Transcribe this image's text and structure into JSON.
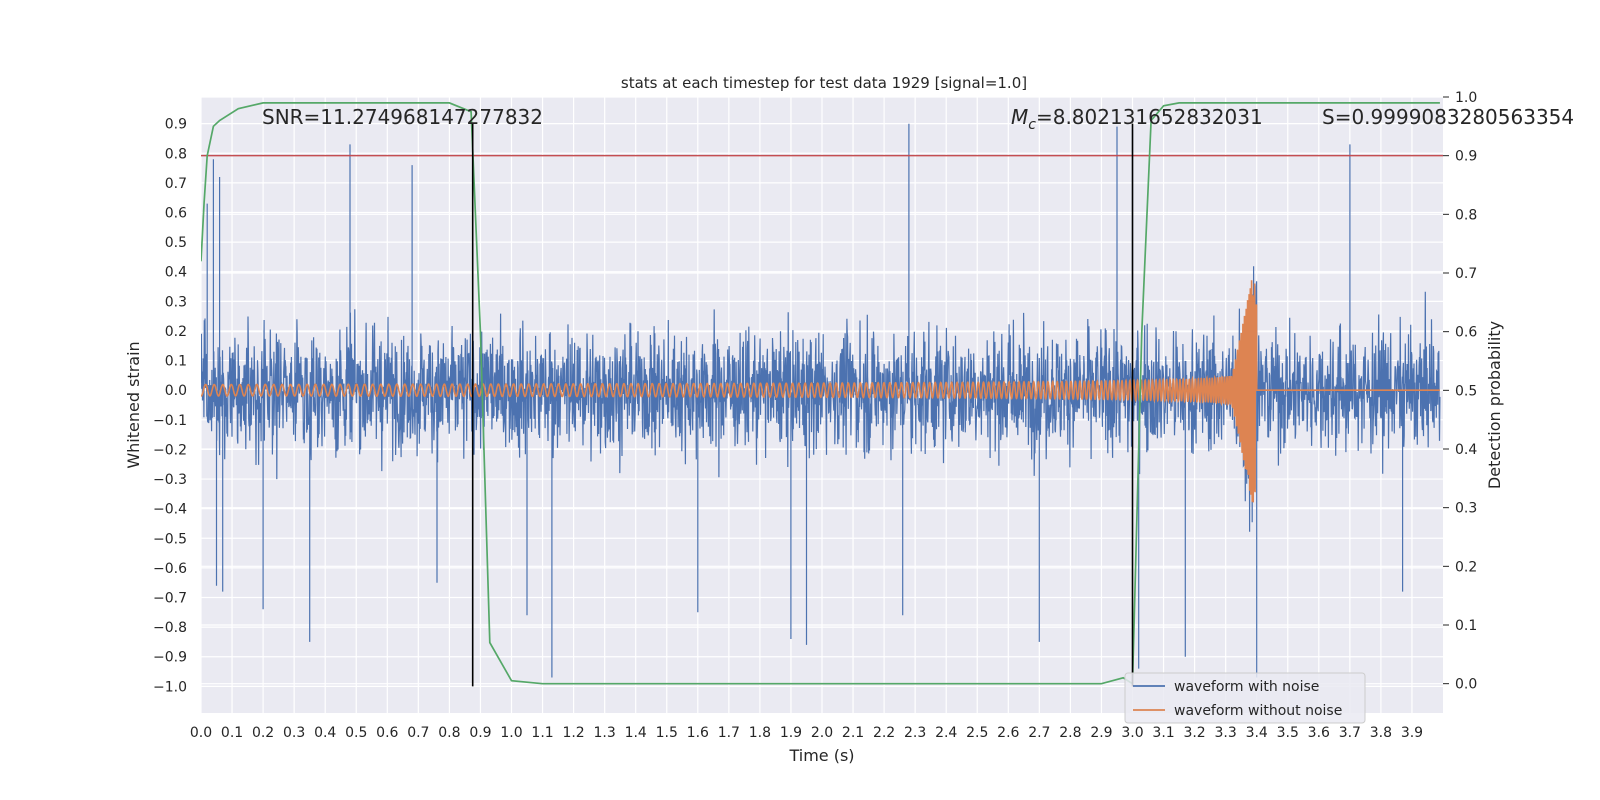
{
  "chart_data": {
    "type": "line",
    "title": "stats at each timestep for test data 1929 [signal=1.0]",
    "xlabel": "Time (s)",
    "ylabel_left": "Whitened strain",
    "ylabel_right": "Detection probability",
    "xlim": [
      0.0,
      4.0
    ],
    "ylim_left": [
      -1.09,
      0.99
    ],
    "ylim_right": [
      -0.05,
      1.0
    ],
    "x_ticks": [
      "0.0",
      "0.1",
      "0.2",
      "0.3",
      "0.4",
      "0.5",
      "0.6",
      "0.7",
      "0.8",
      "0.9",
      "1.0",
      "1.1",
      "1.2",
      "1.3",
      "1.4",
      "1.5",
      "1.6",
      "1.7",
      "1.8",
      "1.9",
      "2.0",
      "2.1",
      "2.2",
      "2.3",
      "2.4",
      "2.5",
      "2.6",
      "2.7",
      "2.8",
      "2.9",
      "3.0",
      "3.1",
      "3.2",
      "3.3",
      "3.4",
      "3.5",
      "3.6",
      "3.7",
      "3.8",
      "3.9"
    ],
    "y_ticks_left": [
      "0.9",
      "0.8",
      "0.7",
      "0.6",
      "0.5",
      "0.4",
      "0.3",
      "0.2",
      "0.1",
      "0.0",
      "−0.1",
      "−0.2",
      "−0.3",
      "−0.4",
      "−0.5",
      "−0.6",
      "−0.7",
      "−0.8",
      "−0.9",
      "−1.0"
    ],
    "y_ticks_right": [
      "1.0",
      "0.9",
      "0.8",
      "0.7",
      "0.6",
      "0.5",
      "0.4",
      "0.3",
      "0.2",
      "0.1",
      "0.0"
    ],
    "grid": true,
    "legend_position": "lower-right",
    "annotations": {
      "snr": "SNR=11.274968147277832",
      "mc_symbol": "M",
      "mc_subscript": "c",
      "mc_value": "=8.802131652832031",
      "s": "S=0.9999083280563354"
    },
    "threshold": {
      "value_right_axis": 0.9,
      "color": "#c44e52"
    },
    "vlines": [
      0.875,
      3.0
    ],
    "series": [
      {
        "name": "waveform with noise",
        "color": "#4c72b0",
        "generator": "noise",
        "amplitude_typical": 0.3,
        "peaks": [
          [
            0.02,
            0.63
          ],
          [
            0.04,
            0.78
          ],
          [
            0.06,
            0.72
          ],
          [
            0.05,
            -0.66
          ],
          [
            0.07,
            -0.68
          ],
          [
            0.2,
            -0.74
          ],
          [
            0.35,
            -0.85
          ],
          [
            0.48,
            0.83
          ],
          [
            0.68,
            0.76
          ],
          [
            0.76,
            -0.65
          ],
          [
            1.05,
            -0.76
          ],
          [
            1.13,
            -0.97
          ],
          [
            1.6,
            -0.75
          ],
          [
            1.9,
            -0.84
          ],
          [
            1.95,
            -0.86
          ],
          [
            2.28,
            0.9
          ],
          [
            2.26,
            -0.76
          ],
          [
            2.7,
            -0.85
          ],
          [
            2.95,
            0.89
          ],
          [
            3.0,
            0.88
          ],
          [
            3.02,
            -0.94
          ],
          [
            3.17,
            -0.9
          ],
          [
            3.4,
            -0.97
          ],
          [
            3.7,
            0.83
          ],
          [
            3.87,
            -0.68
          ]
        ]
      },
      {
        "name": "waveform without noise",
        "color": "#dd8452",
        "generator": "chirp",
        "merger_time": 3.4,
        "amplitude_start": 0.024,
        "amplitude_peak": 0.38
      },
      {
        "name": "detection probability",
        "color": "#55a868",
        "axis": "right",
        "x": [
          0.0,
          0.01,
          0.02,
          0.04,
          0.06,
          0.12,
          0.2,
          0.3,
          0.5,
          0.8,
          0.87,
          0.9,
          0.93,
          1.0,
          1.1,
          1.5,
          2.0,
          2.5,
          2.9,
          2.97,
          3.0,
          3.03,
          3.06,
          3.1,
          3.15,
          3.5,
          3.99
        ],
        "values": [
          0.72,
          0.82,
          0.9,
          0.95,
          0.96,
          0.98,
          0.99,
          0.99,
          0.99,
          0.99,
          0.975,
          0.6,
          0.07,
          0.005,
          0.0,
          0.0,
          0.0,
          0.0,
          0.0,
          0.01,
          0.0,
          0.6,
          0.96,
          0.985,
          0.99,
          0.99,
          0.99
        ]
      }
    ],
    "legend_entries": [
      "waveform with noise",
      "waveform without noise"
    ]
  }
}
